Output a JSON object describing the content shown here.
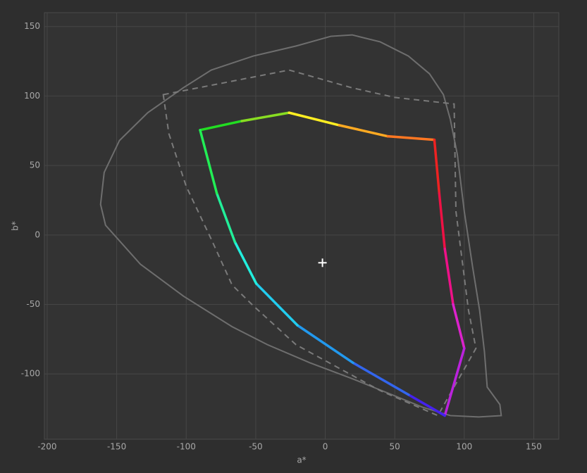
{
  "chart_data": {
    "type": "line",
    "x_label": "a*",
    "y_label": "b*",
    "xlim": [
      -202,
      168
    ],
    "ylim": [
      -147,
      160
    ],
    "xticks": [
      -200,
      -150,
      -100,
      -50,
      0,
      50,
      100,
      150
    ],
    "yticks": [
      -100,
      -50,
      0,
      50,
      100,
      150
    ],
    "grid": true,
    "series": [
      {
        "color": "#6e6e6e",
        "dash": "solid",
        "x": [
          19.3,
          39.5,
          59.8,
          75,
          85,
          90,
          95,
          100,
          106,
          111,
          114.5,
          116.5,
          125.6,
          126.6,
          110.4,
          90,
          70,
          49.6,
          19.3,
          -11,
          -41.5,
          -67,
          -102,
          -133,
          -158,
          -161.6,
          -159,
          -148,
          -127.7,
          -102,
          -82,
          -51.7,
          -21,
          4
        ],
        "values": [
          144,
          139,
          128.8,
          116,
          101,
          83,
          58,
          17,
          -23,
          -54,
          -84,
          -109.5,
          -122,
          -130,
          -131,
          -130,
          -124,
          -115.6,
          -103.4,
          -92,
          -79,
          -66,
          -44,
          -21,
          7,
          22,
          45,
          68,
          88,
          106,
          118.7,
          128.8,
          136,
          143
        ]
      },
      {
        "color": "#7a7a7a",
        "dash": "dashed",
        "x": [
          -116.5,
          -26,
          19,
          50,
          92.7,
          94,
          103,
          108.4,
          81,
          39.5,
          -21,
          -51.7,
          -67,
          -82,
          -100,
          -112.5
        ],
        "values": [
          101,
          118.7,
          106,
          99,
          94.3,
          17,
          -54,
          -81.6,
          -130,
          -112,
          -79,
          -51,
          -36,
          -3,
          35,
          73
        ]
      },
      {
        "color": [
          "#22dd22",
          "#88dd22",
          "#ffee22",
          "#ffaa22",
          "#ff7722",
          "#ee2222",
          "#ee1144",
          "#ee1188",
          "#dd22cc",
          "#bb22dd",
          "#4422ee",
          "#3366ee",
          "#2299ee",
          "#22ccee",
          "#22eedd",
          "#22ee99",
          "#22ee55"
        ],
        "dash": "gradient",
        "x": [
          -90,
          -60,
          -26,
          10,
          45,
          78.5,
          82,
          86,
          92,
          100,
          86,
          60,
          20,
          -20,
          -49.6,
          -65,
          -78
        ],
        "values": [
          75.5,
          82,
          88,
          79,
          71,
          68.5,
          30,
          -10,
          -50,
          -81.6,
          -130,
          -115,
          -92,
          -65,
          -35,
          -5,
          30
        ]
      }
    ],
    "white_point": {
      "x": -2,
      "y": -20,
      "color": "#ffffff"
    }
  }
}
